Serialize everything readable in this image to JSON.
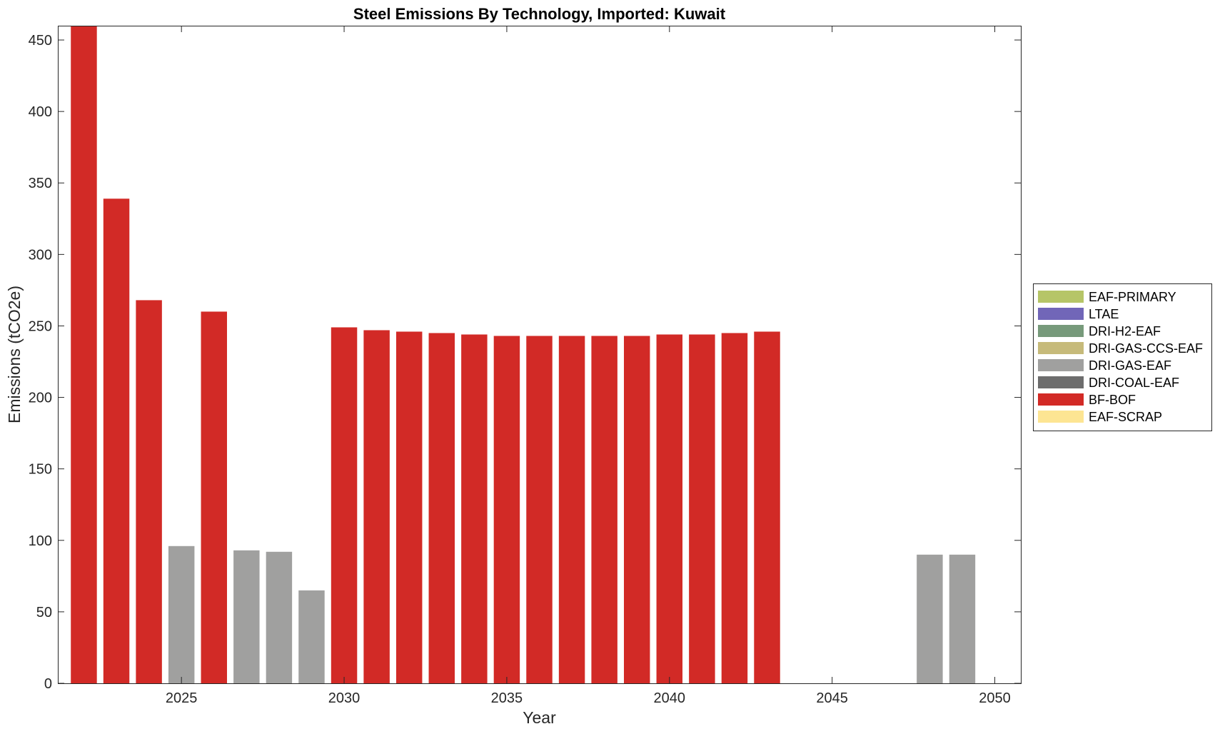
{
  "chart_data": {
    "type": "bar",
    "title": "Steel Emissions By Technology, Imported: Kuwait",
    "xlabel": "Year",
    "ylabel": "Emissions (tCO2e)",
    "xlim": [
      2021.2,
      2050.8
    ],
    "ylim": [
      0,
      460
    ],
    "xticks": [
      2025,
      2030,
      2035,
      2040,
      2045,
      2050
    ],
    "yticks": [
      0,
      50,
      100,
      150,
      200,
      250,
      300,
      350,
      400,
      450
    ],
    "grid": false,
    "legend_position": "right",
    "legend": [
      {
        "name": "EAF-PRIMARY",
        "color": "#b6c567"
      },
      {
        "name": "LTAE",
        "color": "#7166b8"
      },
      {
        "name": "DRI-H2-EAF",
        "color": "#779a7b"
      },
      {
        "name": "DRI-GAS-CCS-EAF",
        "color": "#c6ba7a"
      },
      {
        "name": "DRI-GAS-EAF",
        "color": "#a0a09f"
      },
      {
        "name": "DRI-COAL-EAF",
        "color": "#6d6d6d"
      },
      {
        "name": "BF-BOF",
        "color": "#d22a26"
      },
      {
        "name": "EAF-SCRAP",
        "color": "#fde593"
      }
    ],
    "bars": [
      {
        "x": 2022,
        "value": 460,
        "tech": "BF-BOF"
      },
      {
        "x": 2023,
        "value": 339,
        "tech": "BF-BOF"
      },
      {
        "x": 2024,
        "value": 268,
        "tech": "BF-BOF"
      },
      {
        "x": 2025,
        "value": 96,
        "tech": "DRI-GAS-EAF"
      },
      {
        "x": 2026,
        "value": 260,
        "tech": "BF-BOF"
      },
      {
        "x": 2027,
        "value": 93,
        "tech": "DRI-GAS-EAF"
      },
      {
        "x": 2028,
        "value": 92,
        "tech": "DRI-GAS-EAF"
      },
      {
        "x": 2029,
        "value": 65,
        "tech": "DRI-GAS-EAF"
      },
      {
        "x": 2030,
        "value": 249,
        "tech": "BF-BOF"
      },
      {
        "x": 2031,
        "value": 247,
        "tech": "BF-BOF"
      },
      {
        "x": 2032,
        "value": 246,
        "tech": "BF-BOF"
      },
      {
        "x": 2033,
        "value": 245,
        "tech": "BF-BOF"
      },
      {
        "x": 2034,
        "value": 244,
        "tech": "BF-BOF"
      },
      {
        "x": 2035,
        "value": 243,
        "tech": "BF-BOF"
      },
      {
        "x": 2036,
        "value": 243,
        "tech": "BF-BOF"
      },
      {
        "x": 2037,
        "value": 243,
        "tech": "BF-BOF"
      },
      {
        "x": 2038,
        "value": 243,
        "tech": "BF-BOF"
      },
      {
        "x": 2039,
        "value": 243,
        "tech": "BF-BOF"
      },
      {
        "x": 2040,
        "value": 244,
        "tech": "BF-BOF"
      },
      {
        "x": 2041,
        "value": 244,
        "tech": "BF-BOF"
      },
      {
        "x": 2042,
        "value": 245,
        "tech": "BF-BOF"
      },
      {
        "x": 2043,
        "value": 246,
        "tech": "BF-BOF"
      },
      {
        "x": 2048,
        "value": 90,
        "tech": "DRI-GAS-EAF"
      },
      {
        "x": 2049,
        "value": 90,
        "tech": "DRI-GAS-EAF"
      }
    ]
  }
}
